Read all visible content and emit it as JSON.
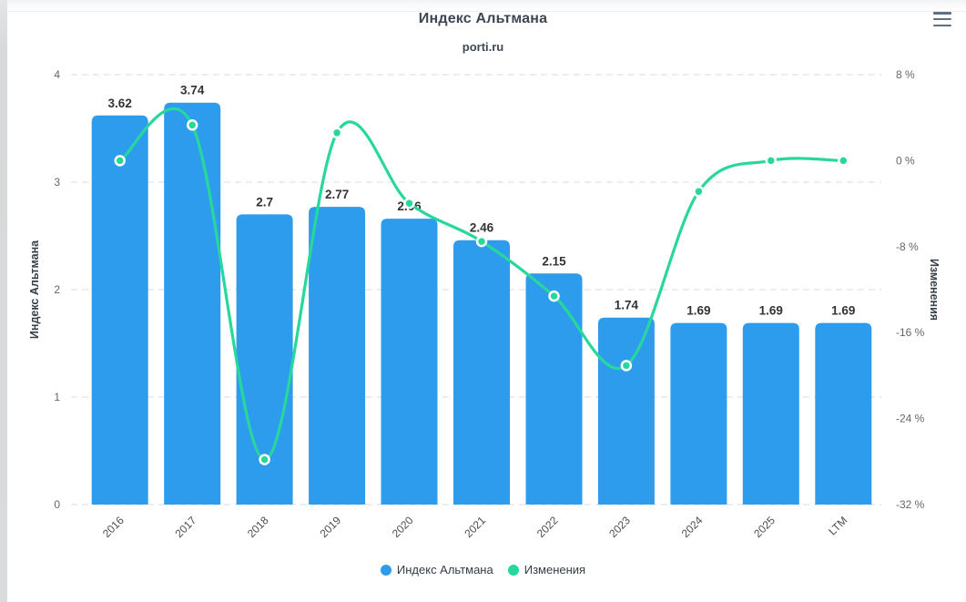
{
  "header": {
    "title": "Индекс Альтмана",
    "subtitle": "porti.ru",
    "menu_icon": "hamburger-context-menu"
  },
  "chart_data": {
    "type": "bar",
    "title": "Индекс Альтмана",
    "subtitle": "porti.ru",
    "categories": [
      "2016",
      "2017",
      "2018",
      "2019",
      "2020",
      "2021",
      "2022",
      "2023",
      "2024",
      "2025",
      "LTM"
    ],
    "series": [
      {
        "name": "Индекс Альтмана",
        "type": "bar",
        "axis": "left",
        "color": "#2d9cec",
        "values": [
          3.62,
          3.74,
          2.7,
          2.77,
          2.66,
          2.46,
          2.15,
          1.74,
          1.69,
          1.69,
          1.69
        ],
        "value_labels": [
          "3.62",
          "3.74",
          "2.7",
          "2.77",
          "2.66",
          "2.46",
          "2.15",
          "1.74",
          "1.69",
          "1.69",
          "1.69"
        ]
      },
      {
        "name": "Изменения",
        "type": "line",
        "axis": "right",
        "color": "#28d79c",
        "marker": "circle-white-stroke",
        "values": [
          0,
          3.31,
          -27.81,
          2.59,
          -3.97,
          -7.52,
          -12.6,
          -19.07,
          -2.87,
          0,
          0
        ]
      }
    ],
    "y_left": {
      "label": "Индекс Альтмана",
      "min": 0,
      "max": 4,
      "ticks": [
        4,
        3,
        2,
        1,
        0
      ],
      "suffix": ""
    },
    "y_right": {
      "label": "Изменения",
      "min": -32,
      "max": 8,
      "ticks": [
        8,
        0,
        -8,
        -16,
        -24,
        -32
      ],
      "suffix": " %"
    },
    "grid": {
      "horizontal": true,
      "style": "dashed",
      "color": "#dbdbdb"
    },
    "x_labels_rotation": -45,
    "legend_position": "bottom"
  },
  "colors": {
    "bar_blue": "#2d9cec",
    "line_green": "#28d79c",
    "tick_text": "#666666",
    "x_label_text": "#4d4d4d",
    "value_label_text": "#333333",
    "axis_title_text": "#37414b"
  }
}
